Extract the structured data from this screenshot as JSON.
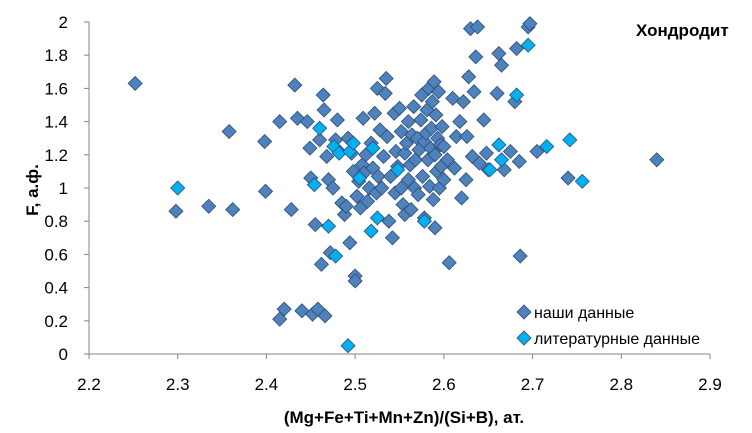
{
  "chart_data": {
    "type": "scatter",
    "title": "Хондродит",
    "xlabel": "(Mg+Fe+Ti+Mn+Zn)/(Si+B), ат.",
    "ylabel": "F, а.ф.",
    "xlim": [
      2.2,
      2.9
    ],
    "ylim": [
      0,
      2
    ],
    "x_ticks": [
      "2.2",
      "2.3",
      "2.4",
      "2.5",
      "2.6",
      "2.7",
      "2.8",
      "2.9"
    ],
    "y_ticks": [
      "0",
      "0.2",
      "0.4",
      "0.6",
      "0.8",
      "1",
      "1.2",
      "1.4",
      "1.6",
      "1.8",
      "2"
    ],
    "grid": false,
    "legend_position": "bottom-right",
    "series": [
      {
        "name": "наши данные",
        "color": "#4f81bd",
        "marker": "diamond",
        "points": [
          [
            2.252,
            1.63
          ],
          [
            2.298,
            0.86
          ],
          [
            2.335,
            0.89
          ],
          [
            2.358,
            1.34
          ],
          [
            2.362,
            0.87
          ],
          [
            2.398,
            1.28
          ],
          [
            2.399,
            0.98
          ],
          [
            2.415,
            1.4
          ],
          [
            2.415,
            0.21
          ],
          [
            2.42,
            0.27
          ],
          [
            2.428,
            0.87
          ],
          [
            2.432,
            1.62
          ],
          [
            2.435,
            1.42
          ],
          [
            2.44,
            0.26
          ],
          [
            2.446,
            1.4
          ],
          [
            2.449,
            1.24
          ],
          [
            2.45,
            1.06
          ],
          [
            2.452,
            0.24
          ],
          [
            2.455,
            0.78
          ],
          [
            2.458,
            0.27
          ],
          [
            2.46,
            1.29
          ],
          [
            2.462,
            0.54
          ],
          [
            2.464,
            1.56
          ],
          [
            2.465,
            1.47
          ],
          [
            2.466,
            0.23
          ],
          [
            2.468,
            1.19
          ],
          [
            2.47,
            1.05
          ],
          [
            2.472,
            0.61
          ],
          [
            2.475,
            1.0
          ],
          [
            2.478,
            1.29
          ],
          [
            2.48,
            1.41
          ],
          [
            2.482,
            1.22
          ],
          [
            2.485,
            0.91
          ],
          [
            2.488,
            0.84
          ],
          [
            2.49,
            0.89
          ],
          [
            2.492,
            1.3
          ],
          [
            2.494,
            0.67
          ],
          [
            2.496,
            1.21
          ],
          [
            2.498,
            1.1
          ],
          [
            2.5,
            0.47
          ],
          [
            2.5,
            0.44
          ],
          [
            2.502,
            0.95
          ],
          [
            2.504,
            1.04
          ],
          [
            2.506,
            0.88
          ],
          [
            2.508,
            1.14
          ],
          [
            2.509,
            1.42
          ],
          [
            2.51,
            1.09
          ],
          [
            2.512,
            1.2
          ],
          [
            2.514,
            0.92
          ],
          [
            2.516,
            1.0
          ],
          [
            2.518,
            1.27
          ],
          [
            2.52,
            1.12
          ],
          [
            2.522,
            1.45
          ],
          [
            2.524,
            0.97
          ],
          [
            2.525,
            1.6
          ],
          [
            2.526,
            1.07
          ],
          [
            2.528,
            1.35
          ],
          [
            2.53,
            1.0
          ],
          [
            2.532,
            1.19
          ],
          [
            2.534,
            1.57
          ],
          [
            2.535,
            1.66
          ],
          [
            2.536,
            1.31
          ],
          [
            2.538,
            0.8
          ],
          [
            2.54,
            1.07
          ],
          [
            2.542,
            0.7
          ],
          [
            2.544,
            1.45
          ],
          [
            2.545,
            0.97
          ],
          [
            2.546,
            1.22
          ],
          [
            2.548,
            1.13
          ],
          [
            2.55,
            1.48
          ],
          [
            2.552,
            1.0
          ],
          [
            2.552,
            1.34
          ],
          [
            2.554,
            0.9
          ],
          [
            2.556,
            1.21
          ],
          [
            2.556,
            0.84
          ],
          [
            2.558,
            1.27
          ],
          [
            2.56,
            1.05
          ],
          [
            2.56,
            1.4
          ],
          [
            2.562,
            1.14
          ],
          [
            2.563,
            0.87
          ],
          [
            2.564,
            1.32
          ],
          [
            2.566,
            1.49
          ],
          [
            2.567,
            1.0
          ],
          [
            2.568,
            1.17
          ],
          [
            2.57,
            1.3
          ],
          [
            2.571,
            0.96
          ],
          [
            2.572,
            1.23
          ],
          [
            2.574,
            1.41
          ],
          [
            2.575,
            1.56
          ],
          [
            2.576,
            1.07
          ],
          [
            2.578,
            1.28
          ],
          [
            2.578,
            0.82
          ],
          [
            2.58,
            1.33
          ],
          [
            2.581,
            1.47
          ],
          [
            2.582,
            1.17
          ],
          [
            2.583,
            1.6
          ],
          [
            2.584,
            1.01
          ],
          [
            2.585,
            1.24
          ],
          [
            2.586,
            1.36
          ],
          [
            2.587,
            1.52
          ],
          [
            2.588,
            0.93
          ],
          [
            2.589,
            1.64
          ],
          [
            2.59,
            1.2
          ],
          [
            2.59,
            0.76
          ],
          [
            2.591,
            1.44
          ],
          [
            2.592,
            1.1
          ],
          [
            2.593,
            1.3
          ],
          [
            2.594,
            1.58
          ],
          [
            2.595,
            1.0
          ],
          [
            2.596,
            1.26
          ],
          [
            2.597,
            1.13
          ],
          [
            2.598,
            1.37
          ],
          [
            2.6,
            1.05
          ],
          [
            2.6,
            1.25
          ],
          [
            2.604,
            1.17
          ],
          [
            2.606,
            0.55
          ],
          [
            2.61,
            1.54
          ],
          [
            2.612,
            1.12
          ],
          [
            2.614,
            1.31
          ],
          [
            2.618,
            1.4
          ],
          [
            2.62,
            0.94
          ],
          [
            2.622,
            1.52
          ],
          [
            2.625,
            1.05
          ],
          [
            2.626,
            1.31
          ],
          [
            2.628,
            1.67
          ],
          [
            2.63,
            1.96
          ],
          [
            2.632,
            1.19
          ],
          [
            2.634,
            1.58
          ],
          [
            2.636,
            1.79
          ],
          [
            2.638,
            1.97
          ],
          [
            2.64,
            1.15
          ],
          [
            2.645,
            1.41
          ],
          [
            2.648,
            1.21
          ],
          [
            2.65,
            1.11
          ],
          [
            2.66,
            1.57
          ],
          [
            2.662,
            1.81
          ],
          [
            2.665,
            1.74
          ],
          [
            2.668,
            1.11
          ],
          [
            2.675,
            1.22
          ],
          [
            2.68,
            1.52
          ],
          [
            2.682,
            1.84
          ],
          [
            2.685,
            1.16
          ],
          [
            2.686,
            0.59
          ],
          [
            2.695,
            1.97
          ],
          [
            2.697,
            1.99
          ],
          [
            2.705,
            1.22
          ],
          [
            2.74,
            1.06
          ],
          [
            2.84,
            1.17
          ]
        ]
      },
      {
        "name": "литературные данные",
        "color": "#00b0f0",
        "marker": "diamond",
        "points": [
          [
            2.3,
            1.0
          ],
          [
            2.454,
            1.02
          ],
          [
            2.46,
            1.36
          ],
          [
            2.47,
            0.77
          ],
          [
            2.476,
            1.25
          ],
          [
            2.478,
            0.59
          ],
          [
            2.482,
            1.21
          ],
          [
            2.492,
            0.05
          ],
          [
            2.494,
            1.22
          ],
          [
            2.498,
            1.27
          ],
          [
            2.505,
            1.06
          ],
          [
            2.518,
            0.74
          ],
          [
            2.52,
            1.24
          ],
          [
            2.525,
            0.82
          ],
          [
            2.548,
            1.11
          ],
          [
            2.578,
            0.8
          ],
          [
            2.652,
            1.11
          ],
          [
            2.662,
            1.26
          ],
          [
            2.665,
            1.17
          ],
          [
            2.682,
            1.56
          ],
          [
            2.695,
            1.86
          ],
          [
            2.716,
            1.25
          ],
          [
            2.742,
            1.29
          ],
          [
            2.756,
            1.04
          ]
        ]
      }
    ]
  }
}
